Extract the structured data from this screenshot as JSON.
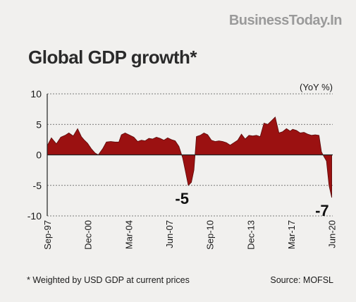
{
  "brand": "BusinessToday.In",
  "title": "Global GDP growth*",
  "footnote": "* Weighted by USD GDP at current prices",
  "source": "Source: MOFSL",
  "colors": {
    "area": "#9b1111",
    "outline": "#5a0a0a",
    "grid": "#555555",
    "background": "#f1f0ee"
  },
  "chart_data": {
    "type": "area",
    "unit_label": "(YoY %)",
    "ylim": [
      -10,
      10
    ],
    "yticks": [
      10,
      5,
      0,
      -5,
      -10
    ],
    "xlim": [
      1997.67,
      2020.5
    ],
    "xticks": [
      {
        "label": "Sep-97",
        "x": 1997.67
      },
      {
        "label": "Dec-00",
        "x": 2000.92
      },
      {
        "label": "Mar-04",
        "x": 2004.17
      },
      {
        "label": "Jun-07",
        "x": 2007.42
      },
      {
        "label": "Sep-10",
        "x": 2010.67
      },
      {
        "label": "Dec-13",
        "x": 2013.92
      },
      {
        "label": "Mar-17",
        "x": 2017.17
      },
      {
        "label": "Jun-20",
        "x": 2020.42
      }
    ],
    "annotations": [
      {
        "text": "-5",
        "x": 2008.9,
        "y": -5
      },
      {
        "text": "-7",
        "x": 2020.1,
        "y": -7
      }
    ],
    "series": [
      {
        "x": [
          1997.67,
          1998.0,
          1998.4,
          1998.75,
          1999.1,
          1999.4,
          1999.75,
          2000.1,
          2000.4,
          2000.6,
          2000.9,
          2001.2,
          2001.5,
          2001.75,
          2002.1,
          2002.4,
          2002.75,
          2003.1,
          2003.4,
          2003.6,
          2003.9,
          2004.2,
          2004.6,
          2004.9,
          2005.2,
          2005.5,
          2005.8,
          2006.1,
          2006.4,
          2006.7,
          2007.0,
          2007.3,
          2007.6,
          2007.9,
          2008.2,
          2008.5,
          2008.7,
          2008.95,
          2009.2,
          2009.4,
          2009.6,
          2009.9,
          2010.2,
          2010.5,
          2010.8,
          2011.1,
          2011.4,
          2011.7,
          2012.0,
          2012.3,
          2012.6,
          2012.9,
          2013.2,
          2013.5,
          2013.8,
          2014.1,
          2014.4,
          2014.7,
          2015.0,
          2015.3,
          2015.6,
          2015.9,
          2016.2,
          2016.5,
          2016.8,
          2017.1,
          2017.3,
          2017.6,
          2017.9,
          2018.2,
          2018.5,
          2018.8,
          2019.1,
          2019.4,
          2019.6,
          2019.8,
          2020.0,
          2020.2,
          2020.42
        ],
        "y": [
          1.5,
          2.8,
          1.8,
          2.9,
          3.2,
          3.6,
          3.1,
          4.3,
          3.0,
          2.5,
          1.9,
          1.0,
          0.3,
          0,
          1.0,
          2.1,
          2.2,
          2.1,
          2.1,
          3.3,
          3.6,
          3.3,
          2.9,
          2.2,
          2.4,
          2.3,
          2.7,
          2.6,
          2.9,
          2.7,
          2.4,
          2.8,
          2.5,
          2.3,
          1.4,
          -0.5,
          -2.5,
          -5.0,
          -4.5,
          -2.5,
          3.0,
          3.2,
          3.6,
          3.3,
          2.4,
          2.2,
          2.3,
          2.2,
          2.0,
          1.6,
          2.0,
          2.4,
          3.4,
          2.6,
          3.2,
          3.1,
          3.2,
          3.0,
          5.2,
          5.0,
          5.6,
          6.2,
          3.6,
          3.8,
          4.3,
          3.9,
          4.2,
          4.0,
          3.6,
          3.7,
          3.4,
          3.2,
          3.3,
          3.2,
          0.5,
          -0.3,
          -1.0,
          -5.0,
          -7.0
        ]
      }
    ]
  }
}
